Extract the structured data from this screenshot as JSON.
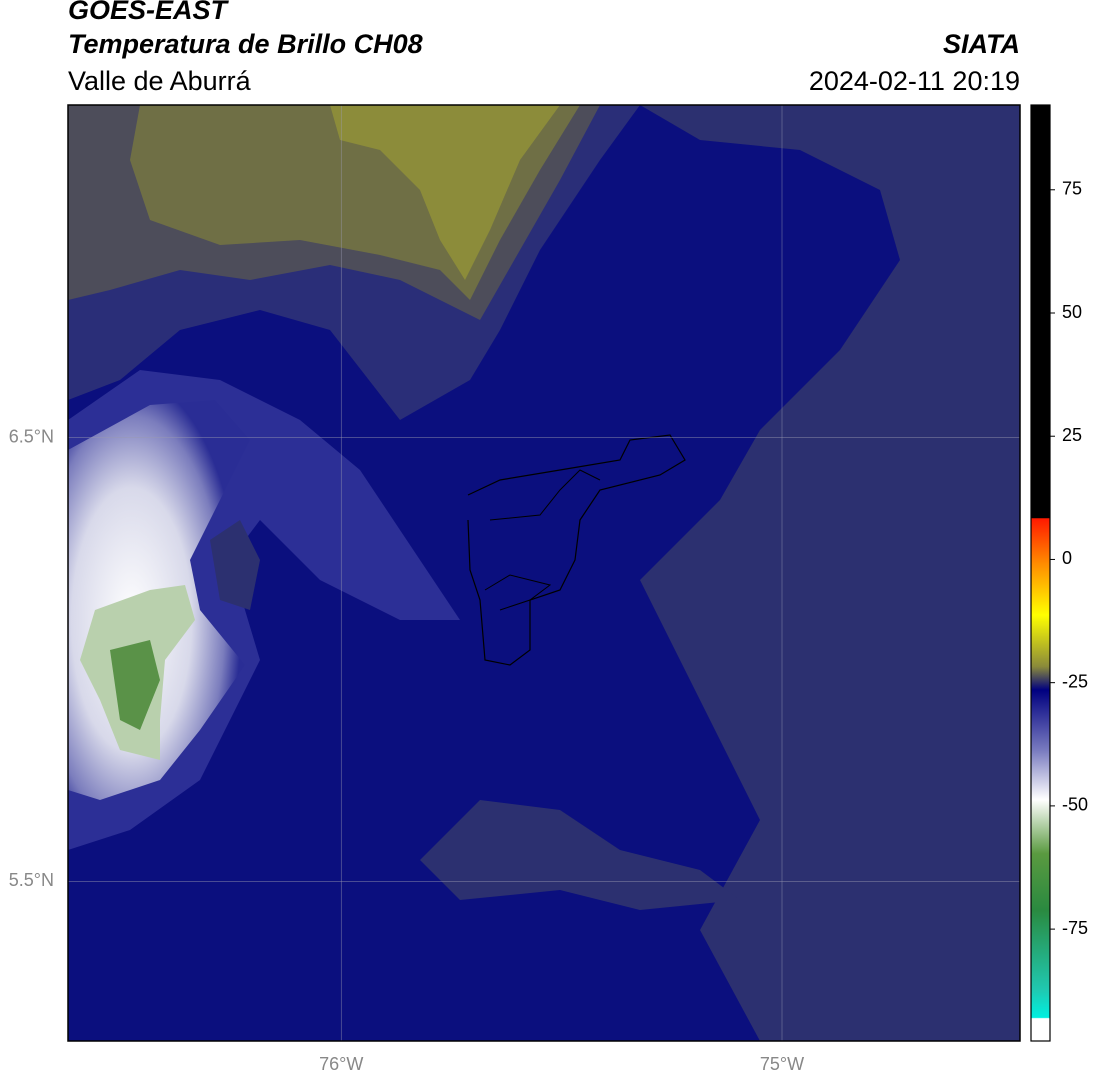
{
  "header": {
    "title": "GOES-EAST",
    "subtitle": "Temperatura de Brillo CH08",
    "region": "Valle de Aburrá",
    "source": "SIATA",
    "datetime": "2024-02-11 20:19"
  },
  "map": {
    "xlim": [
      -76.62,
      -74.46
    ],
    "ylim": [
      5.14,
      7.25
    ],
    "xticks": [
      {
        "value": -76,
        "label": "76°W"
      },
      {
        "value": -75,
        "label": "75°W"
      }
    ],
    "yticks": [
      {
        "value": 5.5,
        "label": "5.5°N"
      },
      {
        "value": 6.5,
        "label": "6.5°N"
      }
    ],
    "grid": true
  },
  "colorbar": {
    "lim": [
      -97.7,
      92.2
    ],
    "ticks": [
      -75,
      -50,
      -25,
      0,
      25,
      50,
      75
    ]
  }
}
